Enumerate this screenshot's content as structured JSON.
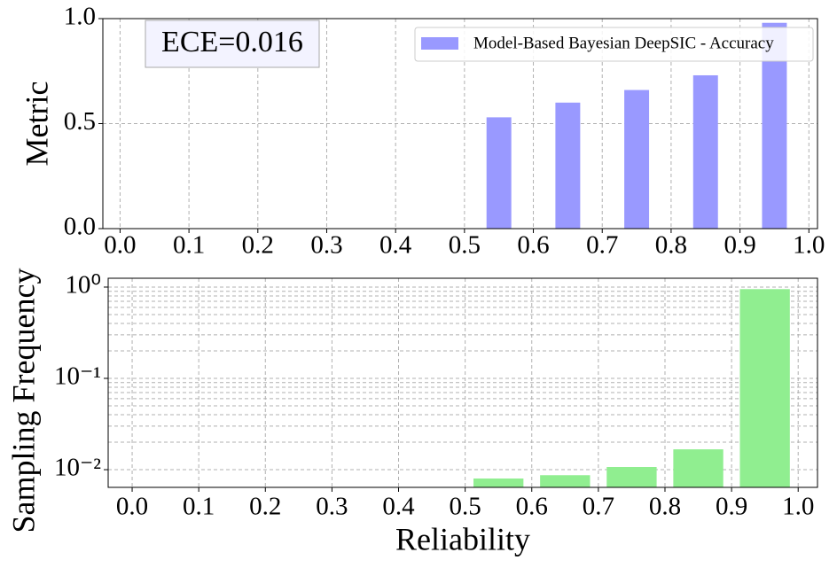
{
  "chart_data": [
    {
      "type": "bar",
      "ylabel": "Metric",
      "annotation": "ECE=0.016",
      "x": [
        0.55,
        0.65,
        0.75,
        0.85,
        0.95
      ],
      "bar_width": 0.036,
      "series": [
        {
          "name": "Model-Based Bayesian DeepSIC - Accuracy",
          "color": "#9999ff",
          "values": [
            0.53,
            0.6,
            0.66,
            0.73,
            0.98
          ]
        }
      ],
      "xlim": [
        -0.025,
        1.0125
      ],
      "ylim": [
        0,
        1
      ],
      "xticks": [
        {
          "value": 0,
          "label": "0.0"
        },
        0.1,
        0.2,
        0.3,
        0.4,
        0.5,
        0.6,
        0.7,
        0.8,
        0.9,
        {
          "value": 1,
          "label": "1.0"
        }
      ],
      "yticks": [
        {
          "value": 0,
          "label": "0.0"
        },
        0.5,
        {
          "value": 1,
          "label": "1.0"
        }
      ],
      "grid": true,
      "legend": "upper right"
    },
    {
      "type": "bar",
      "xlabel": "Reliability",
      "ylabel": "Sampling Frequency",
      "x": [
        0.55,
        0.65,
        0.75,
        0.85,
        0.95
      ],
      "bar_width": 0.075,
      "values": [
        0.008,
        0.0087,
        0.0107,
        0.0167,
        0.95
      ],
      "color": "#90ee90",
      "xlim": [
        -0.036,
        1.029
      ],
      "ylim": [
        0.0064,
        1.25
      ],
      "log_scale": true,
      "xticks": [
        {
          "value": 0,
          "label": "0.0"
        },
        0.1,
        0.2,
        0.3,
        0.4,
        0.5,
        0.6,
        0.7,
        0.8,
        0.9,
        {
          "value": 1,
          "label": "1.0"
        }
      ],
      "yticks": [
        {
          "value": 0.01,
          "label": "10⁻²"
        },
        {
          "value": 0.1,
          "label": "10⁻¹"
        },
        {
          "value": 1,
          "label": "10⁰"
        }
      ],
      "grid": true
    }
  ]
}
